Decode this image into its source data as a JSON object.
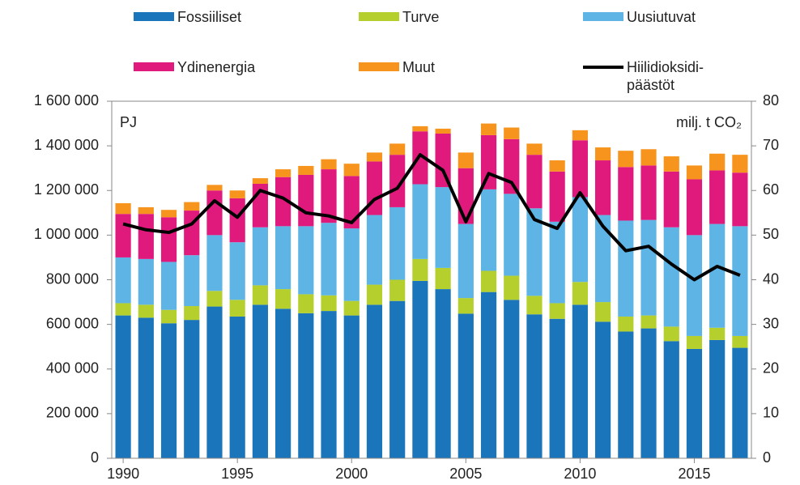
{
  "chart_data": {
    "type": "bar",
    "stacked": true,
    "x": [
      1990,
      1991,
      1992,
      1993,
      1994,
      1995,
      1996,
      1997,
      1998,
      1999,
      2000,
      2001,
      2002,
      2003,
      2004,
      2005,
      2006,
      2007,
      2008,
      2009,
      2010,
      2011,
      2012,
      2013,
      2014,
      2015,
      2016,
      2017
    ],
    "xticks": [
      1990,
      1995,
      2000,
      2005,
      2010,
      2015
    ],
    "ylabel": "PJ",
    "y2label": "milj. t CO₂",
    "ylim": [
      0,
      1600000
    ],
    "yticks": [
      0,
      {
        "value": 200000,
        "label": "200 000"
      },
      {
        "value": 400000,
        "label": "400 000"
      },
      {
        "value": 600000,
        "label": "600 000"
      },
      {
        "value": 800000,
        "label": "800 000"
      },
      {
        "value": 1000000,
        "label": "1 000 000"
      },
      {
        "value": 1200000,
        "label": "1 200 000"
      },
      {
        "value": 1400000,
        "label": "1 400 000"
      },
      {
        "value": 1600000,
        "label": "1 600 000"
      }
    ],
    "y2lim": [
      0,
      80
    ],
    "y2ticks": [
      0,
      10,
      20,
      30,
      40,
      50,
      60,
      70,
      80
    ],
    "series": [
      {
        "name": "Fossiiliset",
        "color": "#1b75bb",
        "values": [
          640000,
          630000,
          605000,
          620000,
          680000,
          635000,
          688000,
          670000,
          650000,
          660000,
          640000,
          688000,
          705000,
          795000,
          758000,
          648000,
          745000,
          710000,
          645000,
          625000,
          688000,
          612000,
          568000,
          582000,
          525000,
          490000,
          530000,
          495000
        ]
      },
      {
        "name": "Turve",
        "color": "#b5cf2d",
        "values": [
          55000,
          58000,
          60000,
          62000,
          70000,
          75000,
          87000,
          88000,
          85000,
          70000,
          65000,
          90000,
          95000,
          98000,
          95000,
          70000,
          95000,
          108000,
          83000,
          70000,
          102000,
          88000,
          67000,
          58000,
          65000,
          58000,
          55000,
          53000
        ]
      },
      {
        "name": "Uusiutuvat",
        "color": "#5db4e5",
        "values": [
          205000,
          205000,
          215000,
          228000,
          250000,
          258000,
          260000,
          282000,
          305000,
          325000,
          325000,
          312000,
          325000,
          335000,
          362000,
          332000,
          365000,
          367000,
          392000,
          365000,
          380000,
          390000,
          430000,
          428000,
          445000,
          452000,
          465000,
          492000
        ]
      },
      {
        "name": "Ydinenergia",
        "color": "#e0197d",
        "values": [
          195000,
          202000,
          200000,
          200000,
          200000,
          197000,
          195000,
          220000,
          230000,
          240000,
          235000,
          240000,
          235000,
          237000,
          240000,
          250000,
          243000,
          245000,
          240000,
          225000,
          255000,
          245000,
          240000,
          244000,
          250000,
          250000,
          240000,
          240000
        ]
      },
      {
        "name": "Muut",
        "color": "#f7941d",
        "values": [
          48000,
          30000,
          33000,
          38000,
          25000,
          35000,
          25000,
          35000,
          40000,
          45000,
          55000,
          40000,
          50000,
          23000,
          22000,
          70000,
          52000,
          52000,
          50000,
          50000,
          45000,
          58000,
          73000,
          73000,
          68000,
          62000,
          75000,
          80000
        ]
      },
      {
        "name": "Hiilidioksidi-päästöt",
        "type": "line",
        "axis": "y2",
        "color": "#000000",
        "values": [
          52.5,
          51.2,
          50.6,
          52.5,
          57.7,
          54,
          60,
          58.3,
          55,
          54.3,
          52.8,
          58,
          60.5,
          68,
          64.5,
          53,
          63.8,
          61.8,
          53.5,
          51.5,
          59.5,
          52,
          46.5,
          47.5,
          43.5,
          40,
          43,
          41
        ]
      }
    ]
  }
}
